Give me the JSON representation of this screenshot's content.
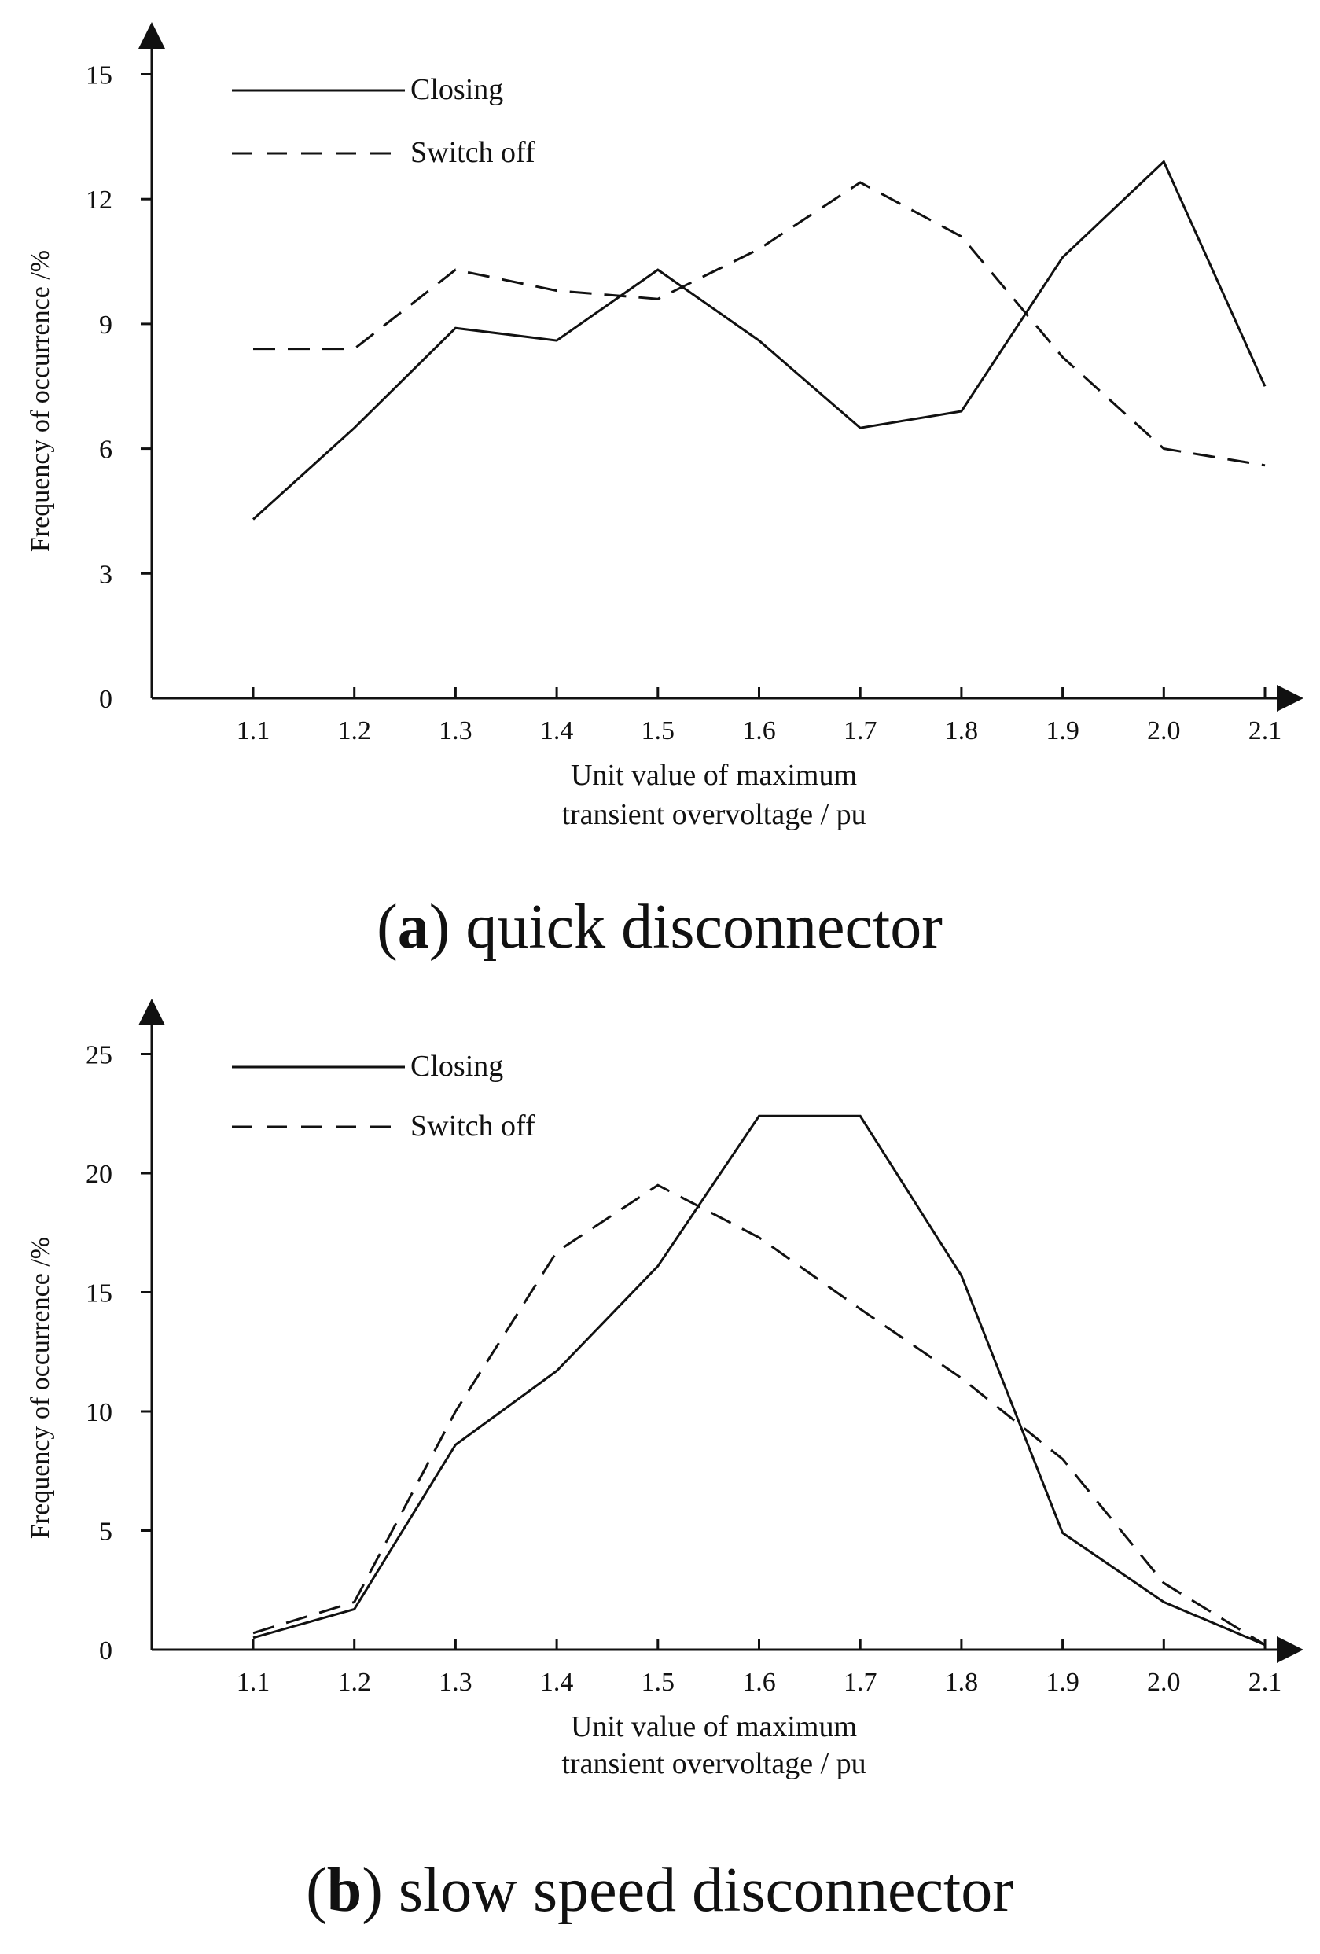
{
  "chart_data": [
    {
      "type": "line",
      "panel": "a",
      "categories": [
        "1.1",
        "1.2",
        "1.3",
        "1.4",
        "1.5",
        "1.6",
        "1.7",
        "1.8",
        "1.9",
        "2.0",
        "2.1"
      ],
      "series": [
        {
          "name": "Closing",
          "style": "solid",
          "values": [
            4.3,
            6.5,
            8.9,
            8.6,
            10.3,
            8.6,
            6.5,
            6.9,
            10.6,
            12.9,
            7.5
          ]
        },
        {
          "name": "Switch off",
          "style": "dashed",
          "values": [
            8.4,
            8.4,
            10.3,
            9.8,
            9.6,
            10.8,
            12.4,
            11.1,
            8.2,
            6.0,
            5.6
          ]
        }
      ],
      "yticks": [
        "0",
        "3",
        "6",
        "9",
        "12",
        "15"
      ],
      "ylim": [
        0,
        16.5
      ],
      "xlabel_line1": "Unit value of maximum",
      "xlabel_line2": "transient overvoltage / pu",
      "ylabel": "Frequency of occurrence /%",
      "caption_letter": "a",
      "caption_text": "quick disconnector",
      "legend_position": "top-left"
    },
    {
      "type": "line",
      "panel": "b",
      "categories": [
        "1.1",
        "1.2",
        "1.3",
        "1.4",
        "1.5",
        "1.6",
        "1.7",
        "1.8",
        "1.9",
        "2.0",
        "2.1"
      ],
      "series": [
        {
          "name": "Closing",
          "style": "solid",
          "values": [
            0.5,
            1.7,
            8.6,
            11.7,
            16.1,
            22.4,
            22.4,
            15.7,
            4.9,
            2.0,
            0.2
          ]
        },
        {
          "name": "Switch off",
          "style": "dashed",
          "values": [
            0.7,
            2.0,
            10.0,
            16.7,
            19.5,
            17.3,
            14.3,
            11.4,
            8.0,
            2.8,
            0.2
          ]
        }
      ],
      "yticks": [
        "0",
        "5",
        "10",
        "15",
        "20",
        "25"
      ],
      "ylim": [
        0,
        27.5
      ],
      "xlabel_line1": "Unit value of maximum",
      "xlabel_line2": "transient overvoltage / pu",
      "ylabel": "Frequency of occurrence /%",
      "caption_letter": "b",
      "caption_text": "slow speed disconnector",
      "legend_position": "top-left"
    }
  ]
}
